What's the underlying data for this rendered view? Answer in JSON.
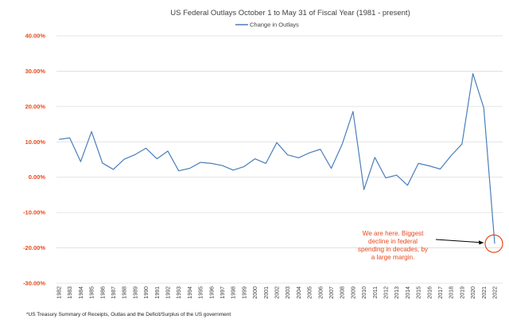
{
  "chart_data": {
    "type": "line",
    "title": "US Federal Outlays October 1 to May 31 of Fiscal Year (1981 - present)",
    "legend": [
      "Change in Outlays"
    ],
    "legend_position": "top-center",
    "ylim": [
      -30,
      40
    ],
    "yticks": [
      40,
      30,
      20,
      10,
      0,
      -10,
      -20,
      -30
    ],
    "ytick_labels": [
      "40.00%",
      "30.00%",
      "20.00%",
      "10.00%",
      "0.00%",
      "-10.00%",
      "-20.00%",
      "-30.00%"
    ],
    "categories": [
      "1982",
      "1983",
      "1984",
      "1985",
      "1986",
      "1987",
      "1988",
      "1989",
      "1990",
      "1991",
      "1992",
      "1993",
      "1994",
      "1995",
      "1996",
      "1997",
      "1998",
      "1999",
      "2000",
      "2001",
      "2002",
      "2003",
      "2004",
      "2005",
      "2006",
      "2007",
      "2008",
      "2009",
      "2010",
      "2011",
      "2012",
      "2013",
      "2014",
      "2015",
      "2016",
      "2017",
      "2018",
      "2019",
      "2020",
      "2021",
      "2022"
    ],
    "series": [
      {
        "name": "Change in Outlays",
        "color": "#4a7ebb",
        "values": [
          10.7,
          11.1,
          4.4,
          12.9,
          4.0,
          2.2,
          5.1,
          6.4,
          8.2,
          5.2,
          7.4,
          1.8,
          2.5,
          4.2,
          3.9,
          3.3,
          2.0,
          3.0,
          5.2,
          3.9,
          9.8,
          6.3,
          5.5,
          6.9,
          7.9,
          2.5,
          9.3,
          18.6,
          -3.5,
          5.6,
          -0.2,
          0.6,
          -2.3,
          3.9,
          3.2,
          2.3,
          6.1,
          9.4,
          29.3,
          19.6,
          -18.8
        ]
      }
    ],
    "annotation": {
      "lines": [
        "We are here. Biggest",
        "decline in federal",
        "spending in decades, by",
        "a large margin."
      ],
      "color": "#e8491d",
      "target_category": "2022"
    },
    "grid": true
  },
  "footnote": "*US Treasury Summary of Receipts, Outlas and the Deficit/Surplus of the US government"
}
